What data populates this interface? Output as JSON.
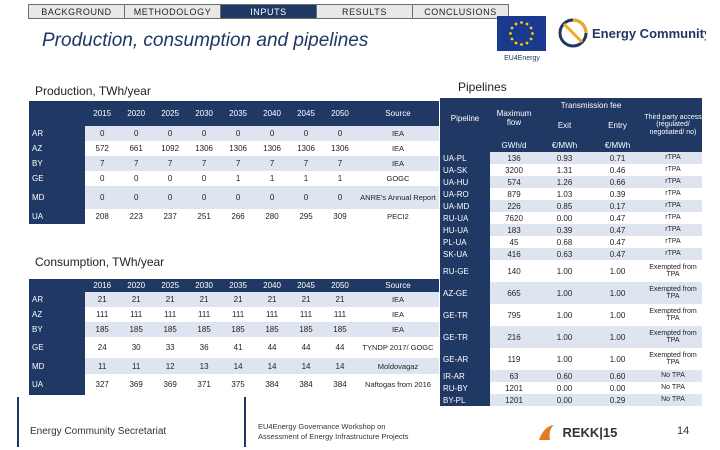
{
  "nav": [
    "BACKGROUND",
    "METHODOLOGY",
    "INPUTS",
    "RESULTS",
    "CONCLUSIONS"
  ],
  "nav_active": "INPUTS",
  "title": "Production, consumption and pipelines",
  "eu_caption": "EU4Energy",
  "ec_logo_text": "Energy Community",
  "colors": {
    "accent": "#1f3864",
    "row_light": "#dfe5f0"
  },
  "production": {
    "label": "Production, TWh/year",
    "years": [
      "2015",
      "2020",
      "2025",
      "2030",
      "2035",
      "2040",
      "2045",
      "2050"
    ],
    "source_header": "Source",
    "rows": [
      {
        "country": "AR",
        "values": [
          "0",
          "0",
          "0",
          "0",
          "0",
          "0",
          "0",
          "0"
        ],
        "source": "IEA"
      },
      {
        "country": "AZ",
        "values": [
          "572",
          "661",
          "1092",
          "1306",
          "1306",
          "1306",
          "1306",
          "1306"
        ],
        "source": "IEA"
      },
      {
        "country": "BY",
        "values": [
          "7",
          "7",
          "7",
          "7",
          "7",
          "7",
          "7",
          "7"
        ],
        "source": "IEA"
      },
      {
        "country": "GE",
        "values": [
          "0",
          "0",
          "0",
          "0",
          "1",
          "1",
          "1",
          "1"
        ],
        "source": "GOGC"
      },
      {
        "country": "MD",
        "values": [
          "0",
          "0",
          "0",
          "0",
          "0",
          "0",
          "0",
          "0"
        ],
        "source": "ANRE's Annual Report"
      },
      {
        "country": "UA",
        "values": [
          "208",
          "223",
          "237",
          "251",
          "266",
          "280",
          "295",
          "309"
        ],
        "source": "PECI2"
      }
    ]
  },
  "consumption": {
    "label": "Consumption, TWh/year",
    "years": [
      "2016",
      "2020",
      "2025",
      "2030",
      "2035",
      "2040",
      "2045",
      "2050"
    ],
    "source_header": "Source",
    "rows": [
      {
        "country": "AR",
        "values": [
          "21",
          "21",
          "21",
          "21",
          "21",
          "21",
          "21",
          "21"
        ],
        "source": "IEA"
      },
      {
        "country": "AZ",
        "values": [
          "111",
          "111",
          "111",
          "111",
          "111",
          "111",
          "111",
          "111"
        ],
        "source": "IEA"
      },
      {
        "country": "BY",
        "values": [
          "185",
          "185",
          "185",
          "185",
          "185",
          "185",
          "185",
          "185"
        ],
        "source": "IEA"
      },
      {
        "country": "GE",
        "values": [
          "24",
          "30",
          "33",
          "36",
          "41",
          "44",
          "44",
          "44"
        ],
        "source": "TYNDP 2017/ GOGC"
      },
      {
        "country": "MD",
        "values": [
          "11",
          "11",
          "12",
          "13",
          "14",
          "14",
          "14",
          "14"
        ],
        "source": "Moldovagaz"
      },
      {
        "country": "UA",
        "values": [
          "327",
          "369",
          "369",
          "371",
          "375",
          "384",
          "384",
          "384"
        ],
        "source": "Naftogas from 2016"
      }
    ]
  },
  "pipelines": {
    "label": "Pipelines",
    "headers": {
      "pipeline": "Pipeline",
      "max_flow": "Maximum flow",
      "transmission_fee": "Transmission fee",
      "exit": "Exit",
      "entry": "Entry",
      "third_party": "Third party access (regulated/ negotiated/ no)",
      "unit_flow": "GWh/d",
      "unit_exit": "€/MWh",
      "unit_entry": "€/MWh"
    },
    "rows": [
      {
        "name": "UA-PL",
        "flow": "136",
        "exit": "0.93",
        "entry": "0.71",
        "tpa": "rTPA"
      },
      {
        "name": "UA-SK",
        "flow": "3200",
        "exit": "1.31",
        "entry": "0.46",
        "tpa": "rTPA"
      },
      {
        "name": "UA-HU",
        "flow": "574",
        "exit": "1.26",
        "entry": "0.66",
        "tpa": "rTPA"
      },
      {
        "name": "UA-RO",
        "flow": "879",
        "exit": "1.03",
        "entry": "0.39",
        "tpa": "rTPA"
      },
      {
        "name": "UA-MD",
        "flow": "226",
        "exit": "0.85",
        "entry": "0.17",
        "tpa": "rTPA"
      },
      {
        "name": "RU-UA",
        "flow": "7620",
        "exit": "0.00",
        "entry": "0.47",
        "tpa": "rTPA"
      },
      {
        "name": "HU-UA",
        "flow": "183",
        "exit": "0.39",
        "entry": "0.47",
        "tpa": "rTPA"
      },
      {
        "name": "PL-UA",
        "flow": "45",
        "exit": "0.68",
        "entry": "0.47",
        "tpa": "rTPA"
      },
      {
        "name": "SK-UA",
        "flow": "416",
        "exit": "0.63",
        "entry": "0.47",
        "tpa": "rTPA"
      },
      {
        "name": "RU-GE",
        "flow": "140",
        "exit": "1.00",
        "entry": "1.00",
        "tpa": "Exempted from TPA"
      },
      {
        "name": "AZ-GE",
        "flow": "665",
        "exit": "1.00",
        "entry": "1.00",
        "tpa": "Exempted from TPA"
      },
      {
        "name": "GE-TR",
        "flow": "795",
        "exit": "1.00",
        "entry": "1.00",
        "tpa": "Exempted from TPA"
      },
      {
        "name": "GE-TR",
        "flow": "216",
        "exit": "1.00",
        "entry": "1.00",
        "tpa": "Exempted from TPA"
      },
      {
        "name": "GE-AR",
        "flow": "119",
        "exit": "1.00",
        "entry": "1.00",
        "tpa": "Exempted from TPA"
      },
      {
        "name": "IR-AR",
        "flow": "63",
        "exit": "0.60",
        "entry": "0.60",
        "tpa": "No TPA"
      },
      {
        "name": "RU-BY",
        "flow": "1201",
        "exit": "0.00",
        "entry": "0.00",
        "tpa": "No TPA"
      },
      {
        "name": "BY-PL",
        "flow": "1201",
        "exit": "0.00",
        "entry": "0.29",
        "tpa": "No TPA"
      }
    ]
  },
  "footer": {
    "left": "Energy Community Secretariat",
    "middle_line1": "EU4Energy Governance Workshop on",
    "middle_line2": "Assessment of Energy Infrastructure Projects",
    "rekk": "REKK|15",
    "page": "14"
  }
}
